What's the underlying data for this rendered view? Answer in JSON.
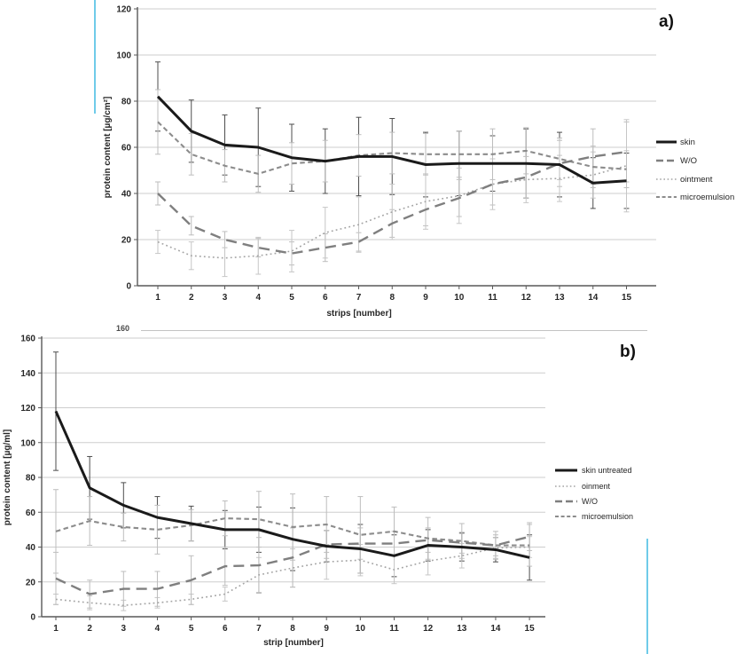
{
  "figure": {
    "panel_a_label": "a)",
    "panel_b_label": "b)"
  },
  "artifacts": {
    "stray_tick_label": "160",
    "cyan_line_color": "#6fcbe9",
    "stray_line_color": "#c3c3c3"
  },
  "colors": {
    "grid": "#cdcdcd",
    "axis": "#595959",
    "tick_text": "#262626",
    "skin_black": "#1a1a1a",
    "series_gray": "#7f7f7f",
    "series_light_gray": "#a3a3a3"
  },
  "chart_data": [
    {
      "id": "a",
      "type": "line",
      "title": "",
      "xlabel": "strips [number]",
      "ylabel": "protein content [µg/cm²]",
      "ylim": [
        0,
        120
      ],
      "ytick_step": 20,
      "yticks": [
        0,
        20,
        40,
        60,
        80,
        100,
        120
      ],
      "x": [
        1,
        2,
        3,
        4,
        5,
        6,
        7,
        8,
        9,
        10,
        11,
        12,
        13,
        14,
        15
      ],
      "grid": true,
      "legend_position": "right",
      "series": [
        {
          "name": "skin",
          "style": "solid",
          "color": "#1a1a1a",
          "err_color": "#4d4d4d",
          "values": [
            82,
            67,
            61,
            60,
            55.5,
            54,
            56,
            56,
            52.5,
            53,
            53,
            53,
            52.5,
            44.5,
            45.5
          ],
          "err": [
            15,
            13.5,
            13,
            17,
            14.5,
            14,
            17,
            16.5,
            14,
            14,
            12,
            15,
            14,
            11,
            12
          ]
        },
        {
          "name": "W/O",
          "style": "longdash",
          "color": "#7f7f7f",
          "err_color": "#bdbdbd",
          "values": [
            40,
            26,
            20,
            16.5,
            14,
            16.5,
            19,
            27,
            33,
            38,
            44,
            47,
            53,
            56,
            58
          ],
          "err": [
            5,
            4,
            3.5,
            4,
            5,
            6,
            4,
            6,
            7,
            8,
            9,
            9,
            10,
            12,
            13
          ]
        },
        {
          "name": "ointment",
          "style": "dotted",
          "color": "#a3a3a3",
          "err_color": "#c6c6c6",
          "values": [
            19,
            13,
            12,
            13,
            15,
            23,
            26.5,
            32,
            36.5,
            39,
            44,
            46,
            46.5,
            48,
            52
          ],
          "err": [
            5,
            6,
            8,
            8,
            9,
            11,
            12,
            12,
            12,
            12,
            11,
            10,
            10,
            10,
            20
          ]
        },
        {
          "name": "microemulsion",
          "style": "shortdash",
          "color": "#8c8c8c",
          "err_color": "#bdbdbd",
          "values": [
            71,
            57,
            52,
            48.5,
            53,
            54,
            56.5,
            57.5,
            57,
            57,
            57,
            58.5,
            55,
            51.5,
            50.5
          ],
          "err": [
            14,
            9,
            7,
            8,
            9,
            9,
            9,
            9,
            9,
            10,
            11,
            10,
            9,
            9,
            8
          ]
        }
      ]
    },
    {
      "id": "b",
      "type": "line",
      "title": "",
      "xlabel": "strip [number]",
      "ylabel": "protein content [µg/ml]",
      "ylim": [
        0,
        160
      ],
      "ytick_step": 20,
      "yticks": [
        0,
        20,
        40,
        60,
        80,
        100,
        120,
        140,
        160
      ],
      "x": [
        1,
        2,
        3,
        4,
        5,
        6,
        7,
        8,
        9,
        10,
        11,
        12,
        13,
        14,
        15
      ],
      "grid": true,
      "legend_position": "right",
      "series": [
        {
          "name": "skin untreated",
          "style": "solid",
          "color": "#1a1a1a",
          "err_color": "#4d4d4d",
          "values": [
            118,
            74,
            64,
            57,
            53.5,
            50,
            50,
            44.5,
            40.5,
            39,
            35,
            41,
            40,
            38.5,
            34
          ],
          "err": [
            34,
            18,
            13,
            12,
            10,
            11,
            13,
            18,
            9,
            14,
            12,
            9,
            8,
            7,
            13
          ]
        },
        {
          "name": "oinment",
          "style": "dotted",
          "color": "#a3a3a3",
          "err_color": "#c6c6c6",
          "values": [
            10,
            8,
            6.5,
            8,
            10,
            13,
            24,
            28,
            31.5,
            32.5,
            27,
            32,
            35,
            39.5,
            40
          ],
          "err": [
            3,
            4,
            3,
            3,
            3,
            4,
            10,
            11,
            10,
            9,
            8,
            8,
            7,
            6,
            6
          ]
        },
        {
          "name": "W/O",
          "style": "longdash",
          "color": "#7f7f7f",
          "err_color": "#bdbdbd",
          "values": [
            22,
            13,
            16,
            16,
            21,
            29,
            29.5,
            34,
            41.5,
            42,
            42,
            44,
            42.5,
            41,
            46
          ],
          "err": [
            15,
            8,
            10,
            10,
            14,
            11,
            16,
            17,
            8,
            9,
            7,
            7,
            6,
            6,
            8
          ]
        },
        {
          "name": "microemulsion",
          "style": "shortdash",
          "color": "#8c8c8c",
          "err_color": "#bdbdbd",
          "values": [
            49,
            55,
            51.5,
            50,
            52.5,
            56.5,
            56,
            51.5,
            53,
            47,
            49,
            45,
            43.5,
            41,
            41
          ],
          "err": [
            24,
            14,
            8,
            14,
            9,
            10,
            16,
            19,
            16,
            22,
            14,
            12,
            10,
            8,
            12
          ]
        }
      ]
    }
  ]
}
